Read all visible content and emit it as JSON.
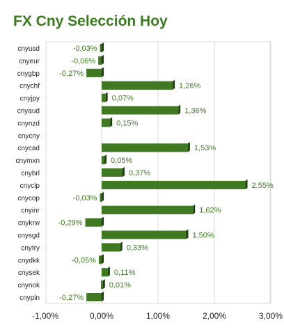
{
  "title": "FX Cny Selección Hoy",
  "chart_data": {
    "type": "bar",
    "orientation": "horizontal",
    "title": "FX Cny Selección Hoy",
    "categories": [
      "cnyusd",
      "cnyeur",
      "cnygbp",
      "cnychf",
      "cnyjpy",
      "cnyaud",
      "cnynzd",
      "cnycny",
      "cnycad",
      "cnymxn",
      "cnybrl",
      "cnyclp",
      "cnycop",
      "cnyinr",
      "cnykrw",
      "cnysgd",
      "cnytry",
      "cnydkk",
      "cnysek",
      "cnynok",
      "cnypln"
    ],
    "values": [
      -0.03,
      -0.06,
      -0.27,
      1.26,
      0.07,
      1.36,
      0.15,
      null,
      1.53,
      0.05,
      0.37,
      2.55,
      -0.03,
      1.62,
      -0.29,
      1.5,
      0.33,
      -0.05,
      0.11,
      0.01,
      -0.27
    ],
    "value_labels": [
      "-0,03%",
      "-0,06%",
      "-0,27%",
      "1,26%",
      "0,07%",
      "1,36%",
      "0,15%",
      "",
      "1,53%",
      "0,05%",
      "0,37%",
      "2,55%",
      "-0,03%",
      "1,62%",
      "-0,29%",
      "1,50%",
      "0,33%",
      "-0,05%",
      "0,11%",
      "0,01%",
      "-0,27%"
    ],
    "xlim": [
      -1,
      3
    ],
    "xticks": [
      -1,
      0,
      1,
      2,
      3
    ],
    "xtick_labels": [
      "-1,00%",
      "0,00%",
      "1,00%",
      "2,00%",
      "3,00%"
    ],
    "grid": true,
    "colors": {
      "bar": "#3f7a23",
      "bar_shadow": "#1f3f10",
      "label": "#3b7a1f",
      "grid": "#d8d8d8"
    }
  }
}
